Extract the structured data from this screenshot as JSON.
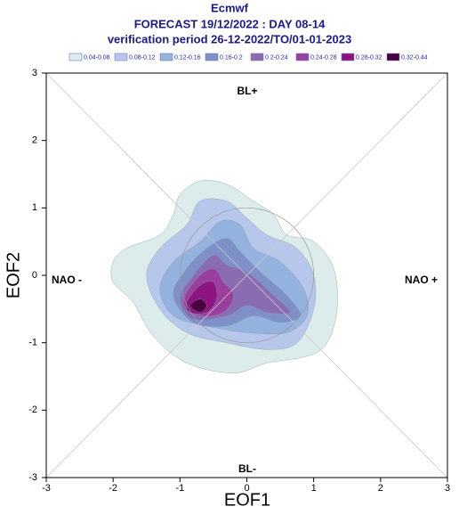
{
  "chart_data": {
    "type": "contour",
    "title": "Ecmwf",
    "subtitle": [
      "FORECAST 19/12/2022 : DAY 08-14",
      "verification period 26-12-2022/TO/01-01-2023"
    ],
    "x_label": "EOF1",
    "y_label": "EOF2",
    "xlim": [
      -3,
      3
    ],
    "ylim": [
      -3,
      3
    ],
    "xticks": [
      -3,
      -2,
      -1,
      0,
      1,
      2,
      3
    ],
    "yticks": [
      -3,
      -2,
      -1,
      0,
      1,
      2,
      3
    ],
    "annotations": [
      "BL+",
      "BL-",
      "NAO -",
      "NAO +"
    ],
    "series": [
      {
        "name": "0.04-0.08",
        "color": "#dcecea",
        "range": [
          0.04,
          0.08
        ]
      },
      {
        "name": "0.08-0.12",
        "color": "#b7c7ec",
        "range": [
          0.08,
          0.12
        ]
      },
      {
        "name": "0.12-0.16",
        "color": "#94b2de",
        "range": [
          0.12,
          0.16
        ]
      },
      {
        "name": "0.16-0.2",
        "color": "#7f90c9",
        "range": [
          0.16,
          0.2
        ]
      },
      {
        "name": "0.2-0.24",
        "color": "#8a6cb2",
        "range": [
          0.2,
          0.24
        ]
      },
      {
        "name": "0.24-0.28",
        "color": "#9b3f9e",
        "range": [
          0.24,
          0.28
        ]
      },
      {
        "name": "0.28-0.32",
        "color": "#8c1582",
        "range": [
          0.28,
          0.32
        ]
      },
      {
        "name": "0.32-0.44",
        "color": "#4a0040",
        "range": [
          0.32,
          0.44
        ]
      }
    ]
  }
}
